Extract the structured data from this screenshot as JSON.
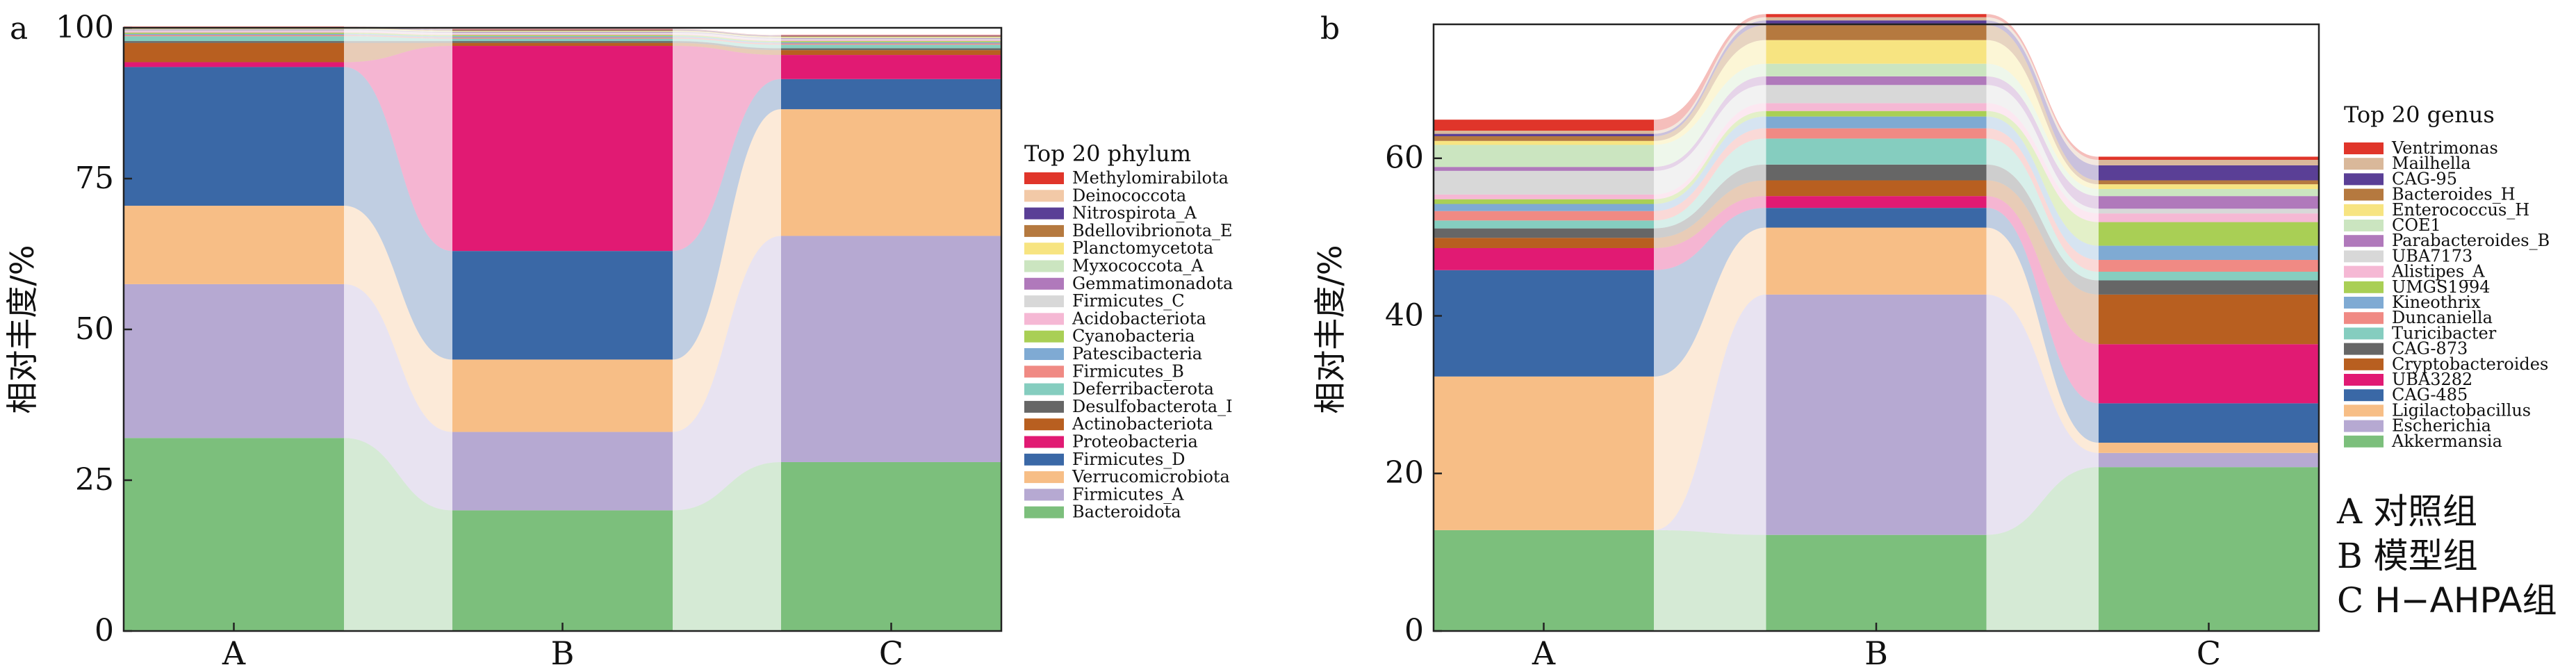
{
  "figure": {
    "condition_key": [
      {
        "letter": "A",
        "label": "对照组"
      },
      {
        "letter": "B",
        "label": "模型组"
      },
      {
        "letter": "C",
        "label": "H−AHPA组"
      }
    ]
  },
  "chart_data": [
    {
      "panel_label": "a",
      "type": "stacked-bar-alluvial",
      "xlabel": "",
      "ylabel": "相对丰度/%",
      "ylim": [
        0,
        100
      ],
      "yticks": [
        0,
        25,
        50,
        75,
        100
      ],
      "categories": [
        "A",
        "B",
        "C"
      ],
      "legend_title": "Top 20 phylum",
      "legend_position": "right",
      "grid": false,
      "series": [
        {
          "name": "Bacteroidota",
          "color": "#7cbf7c",
          "values": [
            32,
            20,
            28
          ]
        },
        {
          "name": "Firmicutes_A",
          "color": "#b6a9d2",
          "values": [
            25.5,
            13,
            37.5
          ]
        },
        {
          "name": "Verrucomicrobiota",
          "color": "#f7be86",
          "values": [
            13,
            12,
            21
          ]
        },
        {
          "name": "Firmicutes_D",
          "color": "#3a68a6",
          "values": [
            23,
            18,
            5
          ]
        },
        {
          "name": "Proteobacteria",
          "color": "#e11a73",
          "values": [
            0.8,
            34,
            4
          ]
        },
        {
          "name": "Actinobacteriota",
          "color": "#b85f20",
          "values": [
            3.2,
            0.5,
            0.8
          ]
        },
        {
          "name": "Desulfobacterota_I",
          "color": "#666666",
          "values": [
            0.3,
            0.3,
            0.3
          ]
        },
        {
          "name": "Deferribacterota",
          "color": "#85cdbf",
          "values": [
            0.8,
            0.4,
            0.6
          ]
        },
        {
          "name": "Firmicutes_B",
          "color": "#f08a84",
          "values": [
            0.2,
            0.2,
            0.2
          ]
        },
        {
          "name": "Patescibacteria",
          "color": "#7faad3",
          "values": [
            0.2,
            0.2,
            0.2
          ]
        },
        {
          "name": "Cyanobacteria",
          "color": "#a9cf55",
          "values": [
            0.2,
            0.2,
            0.2
          ]
        },
        {
          "name": "Acidobacteriota",
          "color": "#f5b8d4",
          "values": [
            0.2,
            0.2,
            0.2
          ]
        },
        {
          "name": "Firmicutes_C",
          "color": "#d8d8d8",
          "values": [
            0.2,
            0.2,
            0.2
          ]
        },
        {
          "name": "Gemmatimonadota",
          "color": "#b079bb",
          "values": [
            0.1,
            0.1,
            0.1
          ]
        },
        {
          "name": "Myxococcota_A",
          "color": "#cbe5c0",
          "values": [
            0.1,
            0.1,
            0.1
          ]
        },
        {
          "name": "Planctomycetota",
          "color": "#f7e481",
          "values": [
            0.1,
            0.1,
            0.1
          ]
        },
        {
          "name": "Bdellovibrionota_E",
          "color": "#b5793f",
          "values": [
            0.1,
            0.1,
            0.1
          ]
        },
        {
          "name": "Nitrospirota_A",
          "color": "#5a3f96",
          "values": [
            0.1,
            0.1,
            0.1
          ]
        },
        {
          "name": "Deinococcota",
          "color": "#f2c9a7",
          "values": [
            0.05,
            0.05,
            0.05
          ]
        },
        {
          "name": "Methylomirabilota",
          "color": "#e0352a",
          "values": [
            0.05,
            0.05,
            0.05
          ]
        }
      ]
    },
    {
      "panel_label": "b",
      "type": "stacked-bar-alluvial",
      "xlabel": "",
      "ylabel": "相对丰度/%",
      "ylim": [
        0,
        77
      ],
      "yticks": [
        0,
        20,
        40,
        60
      ],
      "categories": [
        "A",
        "B",
        "C"
      ],
      "legend_title": "Top 20 genus",
      "legend_position": "right",
      "grid": false,
      "series": [
        {
          "name": "Akkermansia",
          "color": "#7cbf7c",
          "values": [
            12.8,
            12.2,
            20.8
          ]
        },
        {
          "name": "Escherichia",
          "color": "#b6a9d2",
          "values": [
            0,
            30.5,
            1.8
          ]
        },
        {
          "name": "Ligilactobacillus",
          "color": "#f7be86",
          "values": [
            19.5,
            8.5,
            1.3
          ]
        },
        {
          "name": "CAG-485",
          "color": "#3a68a6",
          "values": [
            13.5,
            2.5,
            5
          ]
        },
        {
          "name": "UBA3282",
          "color": "#e11a73",
          "values": [
            2.8,
            1.5,
            7.5
          ]
        },
        {
          "name": "Cryptobacteroides",
          "color": "#b85f20",
          "values": [
            1.3,
            2,
            6.3
          ]
        },
        {
          "name": "CAG-873",
          "color": "#666666",
          "values": [
            1.2,
            2,
            1.8
          ]
        },
        {
          "name": "Turicibacter",
          "color": "#85cdbf",
          "values": [
            1,
            3.3,
            1.1
          ]
        },
        {
          "name": "Duncaniella",
          "color": "#f08a84",
          "values": [
            1.2,
            1.3,
            1.5
          ]
        },
        {
          "name": "Kineothrix",
          "color": "#7faad3",
          "values": [
            0.9,
            1.5,
            1.8
          ]
        },
        {
          "name": "UMGS1994",
          "color": "#a9cf55",
          "values": [
            0.6,
            0.7,
            3
          ]
        },
        {
          "name": "Alistipes_A",
          "color": "#f5b8d4",
          "values": [
            0.6,
            1,
            1.1
          ]
        },
        {
          "name": "UBA7173",
          "color": "#d8d8d8",
          "values": [
            3,
            2.3,
            0.6
          ]
        },
        {
          "name": "Parabacteroides_B",
          "color": "#b079bb",
          "values": [
            0.5,
            1.1,
            1.6
          ]
        },
        {
          "name": "COE1",
          "color": "#cbe5c0",
          "values": [
            2.8,
            1.6,
            0.9
          ]
        },
        {
          "name": "Enterococcus_H",
          "color": "#f7e481",
          "values": [
            0.5,
            3,
            0.6
          ]
        },
        {
          "name": "Bacteroides_H",
          "color": "#b5793f",
          "values": [
            0.6,
            1.9,
            0.5
          ]
        },
        {
          "name": "CAG-95",
          "color": "#5a3f96",
          "values": [
            0.3,
            0.6,
            1.9
          ]
        },
        {
          "name": "Mailhella",
          "color": "#d9b89a",
          "values": [
            0.4,
            0.4,
            0.7
          ]
        },
        {
          "name": "Ventrimonas",
          "color": "#e0352a",
          "values": [
            1.4,
            0.4,
            0.4
          ]
        }
      ]
    }
  ]
}
